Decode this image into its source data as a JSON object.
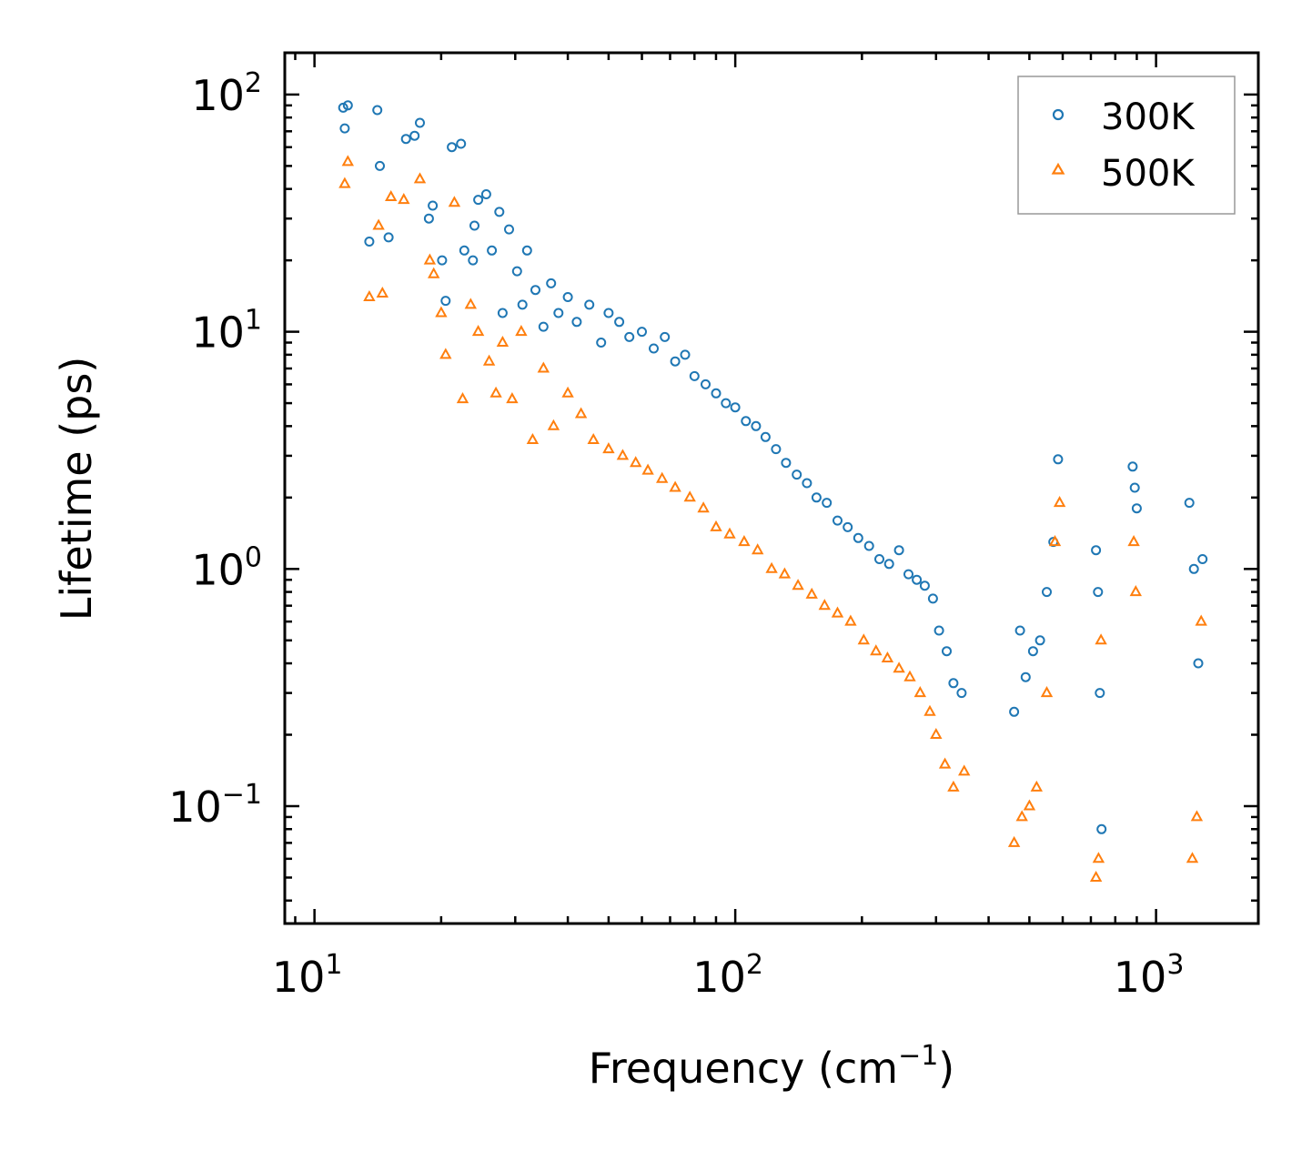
{
  "chart_data": {
    "type": "scatter",
    "title": "",
    "xlabel": "Frequency (cm",
    "xlabel_sup": "−1",
    "xlabel_suffix": ")",
    "ylabel": "Lifetime (ps)",
    "xscale": "log",
    "yscale": "log",
    "xlim": [
      8.5,
      1750
    ],
    "ylim": [
      0.032,
      150
    ],
    "grid": false,
    "legend_position": "top-right",
    "x_ticks": [
      {
        "value": 10,
        "base": "10",
        "exp": "1"
      },
      {
        "value": 100,
        "base": "10",
        "exp": "2"
      },
      {
        "value": 1000,
        "base": "10",
        "exp": "3"
      }
    ],
    "y_ticks": [
      {
        "value": 0.1,
        "base": "10",
        "exp": "−1"
      },
      {
        "value": 1,
        "base": "10",
        "exp": "0"
      },
      {
        "value": 10,
        "base": "10",
        "exp": "1"
      },
      {
        "value": 100,
        "base": "10",
        "exp": "2"
      }
    ],
    "series": [
      {
        "name": "300K",
        "marker": "circle",
        "color": "#1f77b4",
        "x": [
          11.8,
          12.0,
          11.7,
          13.5,
          14.1,
          14.3,
          15.0,
          16.5,
          17.3,
          17.8,
          18.7,
          19.1,
          20.1,
          20.5,
          21.2,
          22.3,
          22.7,
          23.8,
          24.0,
          24.5,
          25.6,
          26.4,
          27.5,
          28.0,
          29.0,
          30.3,
          31.2,
          32.0,
          33.5,
          35.0,
          36.5,
          38.0,
          40.0,
          42.0,
          45.0,
          48.0,
          50.0,
          53.0,
          56.0,
          60.0,
          64.0,
          68.0,
          72.0,
          76.0,
          80.0,
          85.0,
          90.0,
          95.0,
          100.0,
          106.0,
          112.0,
          118.0,
          125.0,
          132.0,
          140.0,
          148.0,
          156.0,
          165.0,
          175.0,
          185.0,
          196.0,
          208.0,
          220.0,
          232.0,
          245.0,
          258.0,
          270.0,
          282.0,
          295.0,
          305.0,
          318.0,
          330.0,
          345.0,
          460.0,
          475.0,
          490.0,
          510.0,
          530.0,
          550.0,
          570.0,
          585.0,
          720.0,
          728.0,
          735.0,
          742.0,
          880.0,
          890.0,
          900.0,
          1200.0,
          1230.0,
          1260.0,
          1290.0
        ],
        "y": [
          72.0,
          90.0,
          88.0,
          24.0,
          86.0,
          50.0,
          25.0,
          65.0,
          67.0,
          76.0,
          30.0,
          34.0,
          20.0,
          13.5,
          60.0,
          62.0,
          22.0,
          20.0,
          28.0,
          36.0,
          38.0,
          22.0,
          32.0,
          12.0,
          27.0,
          18.0,
          13.0,
          22.0,
          15.0,
          10.5,
          16.0,
          12.0,
          14.0,
          11.0,
          13.0,
          9.0,
          12.0,
          11.0,
          9.5,
          10.0,
          8.5,
          9.5,
          7.5,
          8.0,
          6.5,
          6.0,
          5.5,
          5.0,
          4.8,
          4.2,
          4.0,
          3.6,
          3.2,
          2.8,
          2.5,
          2.3,
          2.0,
          1.9,
          1.6,
          1.5,
          1.35,
          1.25,
          1.1,
          1.05,
          1.2,
          0.95,
          0.9,
          0.85,
          0.75,
          0.55,
          0.45,
          0.33,
          0.3,
          0.25,
          0.55,
          0.35,
          0.45,
          0.5,
          0.8,
          1.3,
          2.9,
          1.2,
          0.8,
          0.3,
          0.08,
          2.7,
          2.2,
          1.8,
          1.9,
          1.0,
          0.4,
          1.1
        ]
      },
      {
        "name": "500K",
        "marker": "triangle",
        "color": "#ff7f0e",
        "x": [
          11.8,
          12.0,
          13.5,
          14.2,
          14.5,
          15.2,
          16.3,
          17.8,
          18.8,
          19.2,
          20.0,
          20.5,
          21.5,
          22.5,
          23.5,
          24.5,
          26.0,
          27.0,
          28.0,
          29.5,
          31.0,
          33.0,
          35.0,
          37.0,
          40.0,
          43.0,
          46.0,
          50.0,
          54.0,
          58.0,
          62.0,
          67.0,
          72.0,
          78.0,
          84.0,
          90.0,
          97.0,
          105.0,
          113.0,
          122.0,
          131.0,
          141.0,
          152.0,
          163.0,
          175.0,
          188.0,
          202.0,
          216.0,
          230.0,
          245.0,
          260.0,
          275.0,
          290.0,
          300.0,
          315.0,
          330.0,
          350.0,
          460.0,
          480.0,
          500.0,
          520.0,
          550.0,
          575.0,
          590.0,
          720.0,
          730.0,
          740.0,
          885.0,
          895.0,
          1220.0,
          1250.0,
          1280.0
        ],
        "y": [
          42.0,
          52.0,
          14.0,
          28.0,
          14.5,
          37.0,
          36.0,
          44.0,
          20.0,
          17.5,
          12.0,
          8.0,
          35.0,
          5.2,
          13.0,
          10.0,
          7.5,
          5.5,
          9.0,
          5.2,
          10.0,
          3.5,
          7.0,
          4.0,
          5.5,
          4.5,
          3.5,
          3.2,
          3.0,
          2.8,
          2.6,
          2.4,
          2.2,
          2.0,
          1.8,
          1.5,
          1.4,
          1.3,
          1.2,
          1.0,
          0.95,
          0.85,
          0.78,
          0.7,
          0.65,
          0.6,
          0.5,
          0.45,
          0.42,
          0.38,
          0.35,
          0.3,
          0.25,
          0.2,
          0.15,
          0.12,
          0.14,
          0.07,
          0.09,
          0.1,
          0.12,
          0.3,
          1.3,
          1.9,
          0.05,
          0.06,
          0.5,
          1.3,
          0.8,
          0.06,
          0.09,
          0.6
        ]
      }
    ]
  }
}
